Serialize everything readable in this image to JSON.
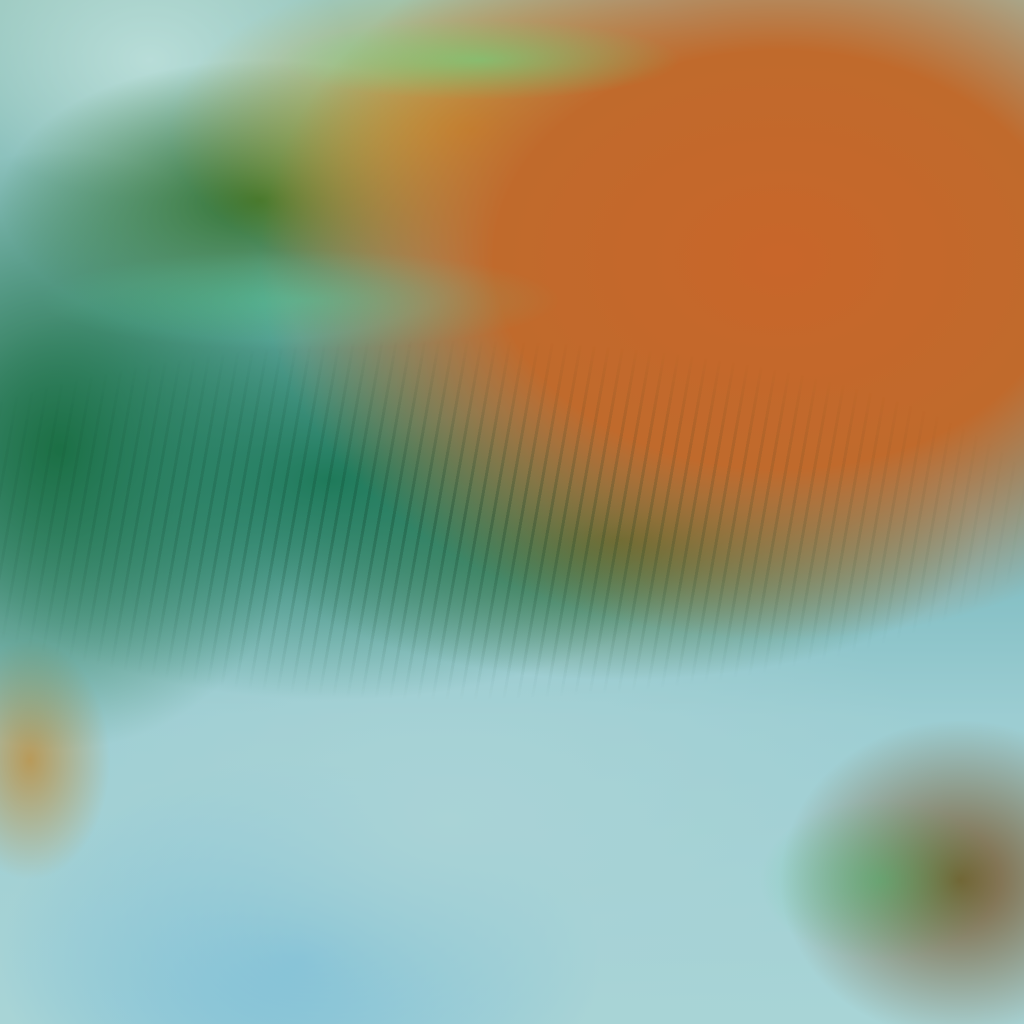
{
  "image": {
    "kind": "false-color satellite imagery",
    "colors": {
      "land": "#c06a2c",
      "vegetation": "#2f6f2a",
      "cloud": "#a8d4d6",
      "water": "#6fb8d8"
    }
  }
}
